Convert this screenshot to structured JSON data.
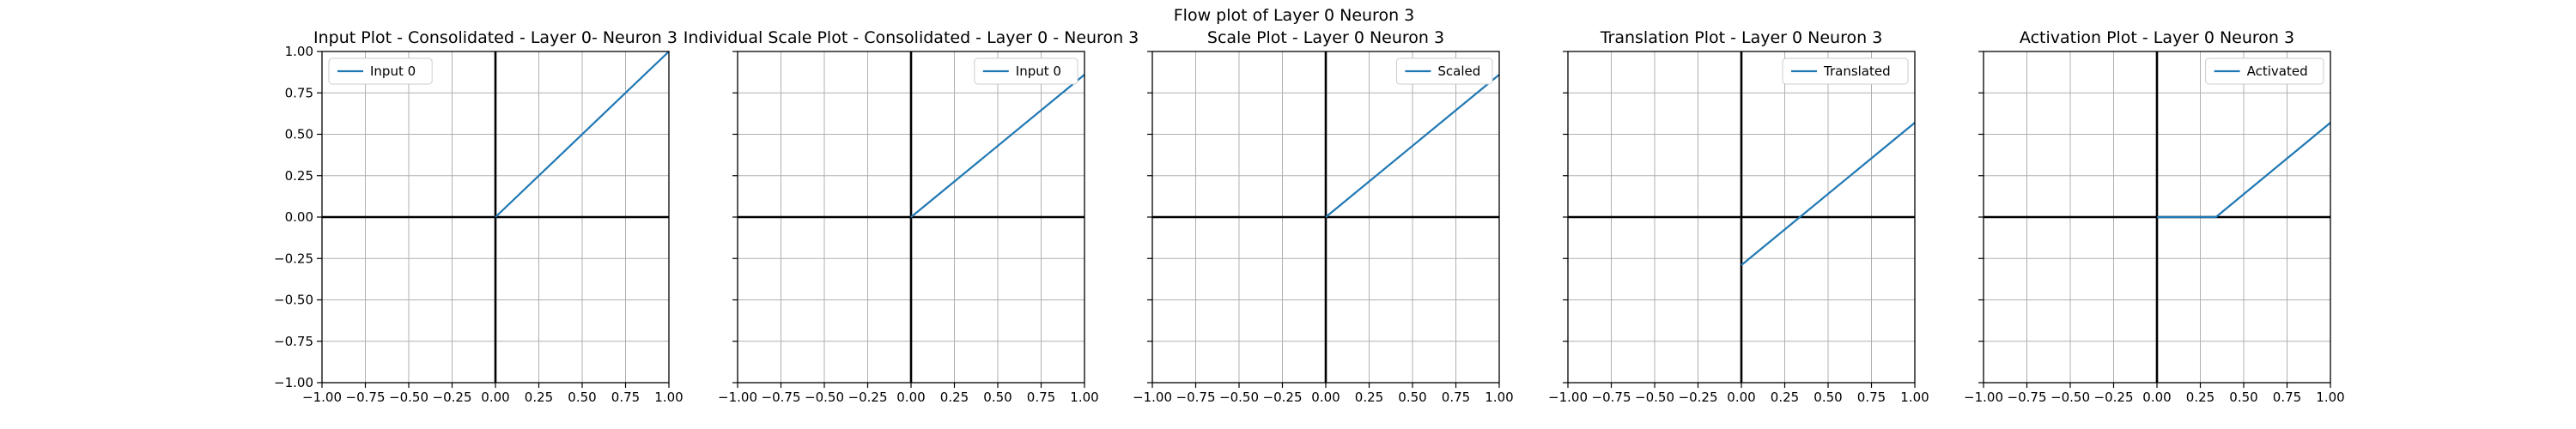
{
  "figure": {
    "title": "Flow plot of Layer 0 Neuron 3"
  },
  "style": {
    "line_color": "#1f77b4",
    "grid_color": "#b0b0b0",
    "axis_line_color": "#000000"
  },
  "chart_data": [
    {
      "type": "line",
      "title": "Input Plot - Consolidated - Layer 0- Neuron 3",
      "xlim": [
        -1,
        1
      ],
      "ylim": [
        -1,
        1
      ],
      "xticks": [
        "−1.00",
        "−0.75",
        "−0.50",
        "−0.25",
        "0.00",
        "0.25",
        "0.50",
        "0.75",
        "1.00"
      ],
      "yticks": [
        "−1.00",
        "−0.75",
        "−0.50",
        "−0.25",
        "0.00",
        "0.25",
        "0.50",
        "0.75",
        "1.00"
      ],
      "show_yticklabels": true,
      "grid": true,
      "legend_position": "upper-left",
      "series": [
        {
          "name": "Input 0",
          "x": [
            0,
            1
          ],
          "y": [
            0,
            1
          ]
        }
      ]
    },
    {
      "type": "line",
      "title": "Individual Scale Plot - Consolidated - Layer 0 - Neuron 3",
      "xlim": [
        -1,
        1
      ],
      "ylim": [
        -1,
        1
      ],
      "xticks": [
        "−1.00",
        "−0.75",
        "−0.50",
        "−0.25",
        "0.00",
        "0.25",
        "0.50",
        "0.75",
        "1.00"
      ],
      "yticks": [],
      "show_yticklabels": false,
      "grid": true,
      "legend_position": "upper-right",
      "series": [
        {
          "name": "Input 0",
          "x": [
            0,
            1
          ],
          "y": [
            0,
            0.86
          ]
        }
      ]
    },
    {
      "type": "line",
      "title": "Scale Plot - Layer 0 Neuron 3",
      "xlim": [
        -1,
        1
      ],
      "ylim": [
        -1,
        1
      ],
      "xticks": [
        "−1.00",
        "−0.75",
        "−0.50",
        "−0.25",
        "0.00",
        "0.25",
        "0.50",
        "0.75",
        "1.00"
      ],
      "yticks": [],
      "show_yticklabels": false,
      "grid": true,
      "legend_position": "upper-right",
      "series": [
        {
          "name": "Scaled",
          "x": [
            0,
            1
          ],
          "y": [
            0,
            0.86
          ]
        }
      ]
    },
    {
      "type": "line",
      "title": "Translation Plot - Layer 0 Neuron 3",
      "xlim": [
        -1,
        1
      ],
      "ylim": [
        -1,
        1
      ],
      "xticks": [
        "−1.00",
        "−0.75",
        "−0.50",
        "−0.25",
        "0.00",
        "0.25",
        "0.50",
        "0.75",
        "1.00"
      ],
      "yticks": [],
      "show_yticklabels": false,
      "grid": true,
      "legend_position": "upper-right",
      "series": [
        {
          "name": "Translated",
          "x": [
            0,
            1
          ],
          "y": [
            -0.29,
            0.57
          ]
        }
      ]
    },
    {
      "type": "line",
      "title": "Activation Plot - Layer 0 Neuron 3",
      "xlim": [
        -1,
        1
      ],
      "ylim": [
        -1,
        1
      ],
      "xticks": [
        "−1.00",
        "−0.75",
        "−0.50",
        "−0.25",
        "0.00",
        "0.25",
        "0.50",
        "0.75",
        "1.00"
      ],
      "yticks": [],
      "show_yticklabels": false,
      "grid": true,
      "legend_position": "upper-right",
      "series": [
        {
          "name": "Activated",
          "x": [
            0,
            0.34,
            1
          ],
          "y": [
            0,
            0,
            0.57
          ]
        }
      ]
    }
  ]
}
